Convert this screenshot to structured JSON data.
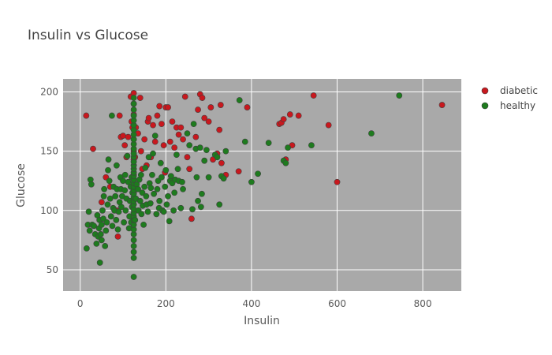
{
  "chart_data": {
    "type": "scatter",
    "title": "Insulin vs Glucose",
    "xlabel": "Insulin",
    "ylabel": "Glucose",
    "xlim": [
      -40,
      890
    ],
    "ylim": [
      32,
      211
    ],
    "x_ticks": [
      0,
      200,
      400,
      600,
      800
    ],
    "y_ticks": [
      50,
      100,
      150,
      200
    ],
    "grid": true,
    "legend_position": "top-right",
    "plot_background": "#a9a9a9",
    "series": [
      {
        "name": "diabetic",
        "color": "#c8181e",
        "points": [
          [
            14,
            180
          ],
          [
            30,
            152
          ],
          [
            50,
            107
          ],
          [
            60,
            128
          ],
          [
            70,
            120
          ],
          [
            85,
            100
          ],
          [
            88,
            78
          ],
          [
            92,
            180
          ],
          [
            95,
            162
          ],
          [
            100,
            163
          ],
          [
            104,
            155
          ],
          [
            108,
            145
          ],
          [
            112,
            162
          ],
          [
            118,
            196
          ],
          [
            120,
            175
          ],
          [
            122,
            170
          ],
          [
            125,
            199
          ],
          [
            125,
            190
          ],
          [
            125,
            181
          ],
          [
            125,
            172
          ],
          [
            125,
            160
          ],
          [
            125,
            150
          ],
          [
            125,
            143
          ],
          [
            125,
            130
          ],
          [
            125,
            120
          ],
          [
            125,
            115
          ],
          [
            128,
            145
          ],
          [
            130,
            170
          ],
          [
            135,
            165
          ],
          [
            140,
            195
          ],
          [
            142,
            150
          ],
          [
            145,
            135
          ],
          [
            150,
            160
          ],
          [
            155,
            138
          ],
          [
            158,
            175
          ],
          [
            160,
            178
          ],
          [
            165,
            145
          ],
          [
            170,
            172
          ],
          [
            175,
            158
          ],
          [
            180,
            180
          ],
          [
            185,
            188
          ],
          [
            190,
            173
          ],
          [
            195,
            155
          ],
          [
            198,
            132
          ],
          [
            200,
            187
          ],
          [
            205,
            187
          ],
          [
            210,
            158
          ],
          [
            215,
            175
          ],
          [
            220,
            153
          ],
          [
            225,
            170
          ],
          [
            230,
            164
          ],
          [
            235,
            170
          ],
          [
            240,
            160
          ],
          [
            245,
            196
          ],
          [
            250,
            145
          ],
          [
            255,
            135
          ],
          [
            260,
            93
          ],
          [
            270,
            162
          ],
          [
            275,
            185
          ],
          [
            280,
            198
          ],
          [
            285,
            195
          ],
          [
            290,
            178
          ],
          [
            300,
            175
          ],
          [
            305,
            187
          ],
          [
            310,
            143
          ],
          [
            320,
            148
          ],
          [
            325,
            168
          ],
          [
            328,
            189
          ],
          [
            330,
            140
          ],
          [
            340,
            130
          ],
          [
            370,
            133
          ],
          [
            390,
            187
          ],
          [
            465,
            173
          ],
          [
            470,
            174
          ],
          [
            475,
            177
          ],
          [
            480,
            143
          ],
          [
            490,
            181
          ],
          [
            495,
            155
          ],
          [
            510,
            180
          ],
          [
            545,
            197
          ],
          [
            580,
            172
          ],
          [
            600,
            124
          ],
          [
            845,
            189
          ]
        ]
      },
      {
        "name": "healthy",
        "color": "#1e7b1e",
        "points": [
          [
            15,
            68
          ],
          [
            18,
            88
          ],
          [
            20,
            99
          ],
          [
            22,
            83
          ],
          [
            24,
            126
          ],
          [
            26,
            122
          ],
          [
            28,
            88
          ],
          [
            32,
            87
          ],
          [
            35,
            80
          ],
          [
            38,
            72
          ],
          [
            40,
            96
          ],
          [
            42,
            78
          ],
          [
            44,
            85
          ],
          [
            45,
            92
          ],
          [
            46,
            56
          ],
          [
            48,
            80
          ],
          [
            50,
            75
          ],
          [
            50,
            88
          ],
          [
            52,
            100
          ],
          [
            54,
            93
          ],
          [
            55,
            112
          ],
          [
            56,
            118
          ],
          [
            58,
            70
          ],
          [
            60,
            83
          ],
          [
            62,
            90
          ],
          [
            64,
            105
          ],
          [
            65,
            134
          ],
          [
            66,
            143
          ],
          [
            68,
            125
          ],
          [
            70,
            110
          ],
          [
            72,
            95
          ],
          [
            74,
            180
          ],
          [
            75,
            87
          ],
          [
            77,
            102
          ],
          [
            78,
            120
          ],
          [
            80,
            100
          ],
          [
            82,
            112
          ],
          [
            84,
            92
          ],
          [
            85,
            138
          ],
          [
            86,
            118
          ],
          [
            88,
            84
          ],
          [
            90,
            99
          ],
          [
            92,
            107
          ],
          [
            94,
            128
          ],
          [
            95,
            118
          ],
          [
            96,
            103
          ],
          [
            98,
            112
          ],
          [
            100,
            125
          ],
          [
            102,
            90
          ],
          [
            104,
            117
          ],
          [
            105,
            130
          ],
          [
            106,
            100
          ],
          [
            108,
            110
          ],
          [
            110,
            146
          ],
          [
            112,
            124
          ],
          [
            114,
            85
          ],
          [
            115,
            95
          ],
          [
            116,
            108
          ],
          [
            118,
            120
          ],
          [
            119,
            90
          ],
          [
            120,
            128
          ],
          [
            121,
            103
          ],
          [
            122,
            115
          ],
          [
            125,
            44
          ],
          [
            125,
            60
          ],
          [
            125,
            65
          ],
          [
            125,
            70
          ],
          [
            125,
            75
          ],
          [
            125,
            80
          ],
          [
            125,
            84
          ],
          [
            125,
            88
          ],
          [
            125,
            92
          ],
          [
            125,
            95
          ],
          [
            125,
            98
          ],
          [
            125,
            101
          ],
          [
            125,
            105
          ],
          [
            125,
            108
          ],
          [
            125,
            111
          ],
          [
            125,
            114
          ],
          [
            125,
            117
          ],
          [
            125,
            120
          ],
          [
            125,
            123
          ],
          [
            125,
            126
          ],
          [
            125,
            129
          ],
          [
            125,
            132
          ],
          [
            125,
            135
          ],
          [
            125,
            138
          ],
          [
            125,
            141
          ],
          [
            125,
            145
          ],
          [
            125,
            148
          ],
          [
            125,
            152
          ],
          [
            125,
            156
          ],
          [
            125,
            160
          ],
          [
            125,
            164
          ],
          [
            125,
            168
          ],
          [
            125,
            172
          ],
          [
            125,
            176
          ],
          [
            125,
            180
          ],
          [
            125,
            185
          ],
          [
            125,
            190
          ],
          [
            125,
            195
          ],
          [
            128,
            92
          ],
          [
            130,
            110
          ],
          [
            132,
            122
          ],
          [
            135,
            118
          ],
          [
            136,
            100
          ],
          [
            138,
            126
          ],
          [
            140,
            108
          ],
          [
            142,
            130
          ],
          [
            143,
            97
          ],
          [
            145,
            115
          ],
          [
            146,
            104
          ],
          [
            148,
            88
          ],
          [
            150,
            120
          ],
          [
            152,
            136
          ],
          [
            154,
            112
          ],
          [
            155,
            105
          ],
          [
            158,
            99
          ],
          [
            160,
            145
          ],
          [
            162,
            123
          ],
          [
            164,
            106
          ],
          [
            165,
            119
          ],
          [
            168,
            130
          ],
          [
            170,
            148
          ],
          [
            172,
            114
          ],
          [
            175,
            163
          ],
          [
            178,
            97
          ],
          [
            180,
            118
          ],
          [
            182,
            125
          ],
          [
            184,
            102
          ],
          [
            185,
            108
          ],
          [
            188,
            140
          ],
          [
            190,
            128
          ],
          [
            192,
            100
          ],
          [
            195,
            99
          ],
          [
            198,
            120
          ],
          [
            200,
            134
          ],
          [
            202,
            105
          ],
          [
            205,
            112
          ],
          [
            208,
            91
          ],
          [
            210,
            125
          ],
          [
            212,
            129
          ],
          [
            215,
            123
          ],
          [
            218,
            100
          ],
          [
            220,
            115
          ],
          [
            222,
            126
          ],
          [
            225,
            147
          ],
          [
            228,
            135
          ],
          [
            230,
            125
          ],
          [
            235,
            102
          ],
          [
            238,
            124
          ],
          [
            240,
            118
          ],
          [
            250,
            165
          ],
          [
            255,
            155
          ],
          [
            262,
            101
          ],
          [
            265,
            173
          ],
          [
            270,
            152
          ],
          [
            272,
            128
          ],
          [
            275,
            108
          ],
          [
            280,
            153
          ],
          [
            282,
            103
          ],
          [
            284,
            114
          ],
          [
            290,
            142
          ],
          [
            295,
            151
          ],
          [
            300,
            128
          ],
          [
            315,
            147
          ],
          [
            320,
            145
          ],
          [
            325,
            105
          ],
          [
            330,
            129
          ],
          [
            335,
            127
          ],
          [
            340,
            150
          ],
          [
            372,
            193
          ],
          [
            385,
            158
          ],
          [
            400,
            124
          ],
          [
            415,
            131
          ],
          [
            440,
            157
          ],
          [
            475,
            142
          ],
          [
            480,
            140
          ],
          [
            485,
            153
          ],
          [
            540,
            155
          ],
          [
            680,
            165
          ],
          [
            745,
            197
          ]
        ]
      }
    ]
  }
}
